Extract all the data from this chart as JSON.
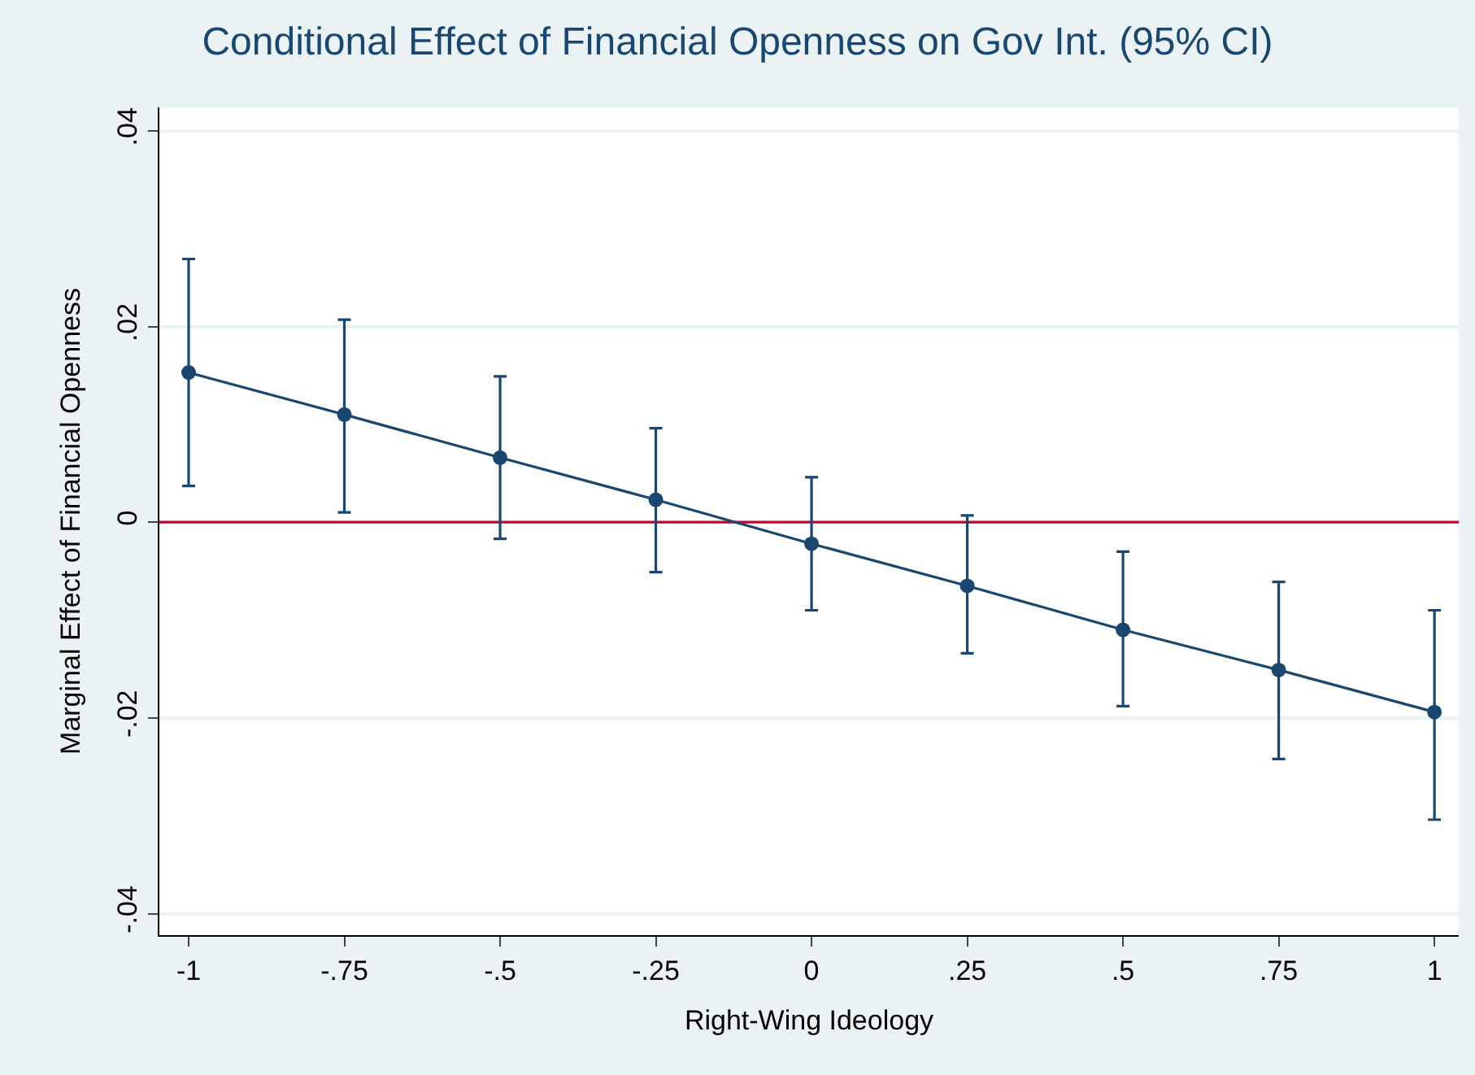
{
  "chart_data": {
    "type": "line",
    "title": "Conditional Effect of Financial Openness on Gov Int. (95% CI)",
    "xlabel": "Right-Wing Ideology",
    "ylabel": "Marginal Effect of Financial Openness",
    "x": [
      -1,
      -0.75,
      -0.5,
      -0.25,
      0,
      0.25,
      0.5,
      0.75,
      1
    ],
    "series": [
      {
        "color": "#1a476f",
        "values": [
          0.0153,
          0.011,
          0.0066,
          0.0023,
          -0.0022,
          -0.0065,
          -0.011,
          -0.0151,
          -0.0194
        ],
        "errors": [
          [
            0.0037,
            0.0269
          ],
          [
            0.001,
            0.0207
          ],
          [
            -0.0017,
            0.0149
          ],
          [
            -0.0051,
            0.0096
          ],
          [
            -0.009,
            0.0046
          ],
          [
            -0.0134,
            0.0007
          ],
          [
            -0.0188,
            -0.003
          ],
          [
            -0.0242,
            -0.0061
          ],
          [
            -0.0304,
            -0.009
          ]
        ]
      }
    ],
    "xlim": [
      -1.047,
      1.039
    ],
    "ylim": [
      -0.0422,
      0.0424
    ],
    "xticks": [
      {
        "value": -1,
        "label": "-1"
      },
      {
        "value": -0.75,
        "label": "-.75"
      },
      {
        "value": -0.5,
        "label": "-.5"
      },
      {
        "value": -0.25,
        "label": "-.25"
      },
      {
        "value": 0,
        "label": "0"
      },
      {
        "value": 0.25,
        "label": ".25"
      },
      {
        "value": 0.5,
        "label": ".5"
      },
      {
        "value": 0.75,
        "label": ".75"
      },
      {
        "value": 1,
        "label": "1"
      }
    ],
    "yticks": [
      {
        "value": -0.04,
        "label": "-.04"
      },
      {
        "value": -0.02,
        "label": "-.02"
      },
      {
        "value": 0,
        "label": "0"
      },
      {
        "value": 0.02,
        "label": ".02"
      },
      {
        "value": 0.04,
        "label": ".04"
      }
    ],
    "ref_lines": [
      {
        "axis": "y",
        "value": 0,
        "color": "#c10534"
      }
    ],
    "grid": "y",
    "marker": "circle",
    "line_style": "solid"
  }
}
